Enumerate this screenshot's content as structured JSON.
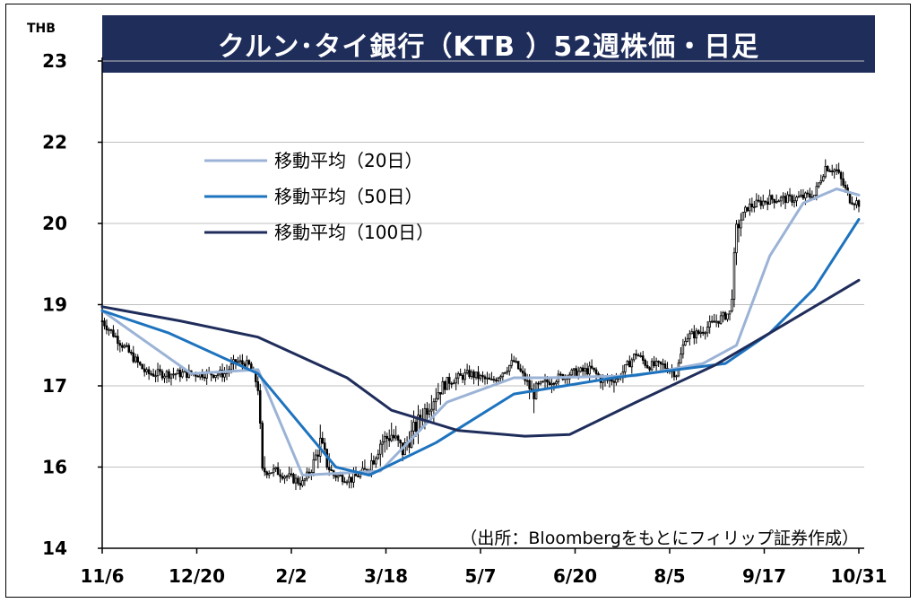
{
  "title": "クルン･タイ銀行（KTB ）52週株価・日足",
  "y_unit": "THB",
  "source": "（出所：Bloombergをもとにフィリップ証券作成）",
  "legend": [
    {
      "label": "移動平均（20日）",
      "color": "#9bb3d6"
    },
    {
      "label": "移動平均（50日）",
      "color": "#1e73be"
    },
    {
      "label": "移動平均（100日）",
      "color": "#1f2d5b"
    }
  ],
  "chart_data": {
    "type": "line",
    "title": "クルン･タイ銀行（KTB ）52週株価・日足",
    "ylabel": "THB",
    "y_ticks": [
      "14",
      "16",
      "17",
      "19",
      "20",
      "22",
      "23"
    ],
    "x_ticks": [
      "11/6",
      "12/20",
      "2/2",
      "3/18",
      "5/7",
      "6/20",
      "8/5",
      "9/17",
      "10/31"
    ],
    "ylim": [
      14,
      23
    ],
    "grid": "horizontal",
    "legend_position": "top-left",
    "candlestick_series": {
      "name": "株価（日足）",
      "color": "#000000",
      "anchors": [
        [
          0,
          18.6
        ],
        [
          20,
          17.3
        ],
        [
          40,
          17.3
        ],
        [
          55,
          17.3
        ],
        [
          60,
          17.6
        ],
        [
          66,
          17.5
        ],
        [
          70,
          17.0
        ],
        [
          72,
          15.9
        ],
        [
          78,
          15.9
        ],
        [
          90,
          15.6
        ],
        [
          98,
          16.3
        ],
        [
          104,
          15.8
        ],
        [
          112,
          15.7
        ],
        [
          118,
          15.9
        ],
        [
          125,
          16.3
        ],
        [
          130,
          16.4
        ],
        [
          135,
          16.2
        ],
        [
          145,
          16.7
        ],
        [
          155,
          17.1
        ],
        [
          165,
          17.3
        ],
        [
          175,
          17.1
        ],
        [
          185,
          17.6
        ],
        [
          193,
          16.9
        ],
        [
          200,
          17.1
        ],
        [
          210,
          17.3
        ],
        [
          220,
          17.4
        ],
        [
          225,
          17.1
        ],
        [
          232,
          17.2
        ],
        [
          240,
          17.8
        ],
        [
          245,
          17.5
        ],
        [
          252,
          17.5
        ],
        [
          258,
          17.3
        ],
        [
          262,
          18.2
        ],
        [
          268,
          18.3
        ],
        [
          276,
          18.6
        ],
        [
          282,
          18.8
        ],
        [
          285,
          19.9
        ],
        [
          290,
          20.4
        ],
        [
          300,
          20.6
        ],
        [
          310,
          20.6
        ],
        [
          320,
          20.7
        ],
        [
          325,
          21.4
        ],
        [
          330,
          21.3
        ],
        [
          336,
          20.6
        ],
        [
          340,
          20.5
        ]
      ],
      "n_days": 341
    },
    "series": [
      {
        "name": "移動平均（20日）",
        "color": "#9bb3d6",
        "points": [
          [
            0,
            18.85
          ],
          [
            40,
            17.3
          ],
          [
            70,
            17.4
          ],
          [
            90,
            15.8
          ],
          [
            125,
            15.9
          ],
          [
            155,
            16.8
          ],
          [
            185,
            17.2
          ],
          [
            200,
            17.2
          ],
          [
            240,
            17.25
          ],
          [
            270,
            17.55
          ],
          [
            285,
            18.0
          ],
          [
            300,
            19.6
          ],
          [
            315,
            20.5
          ],
          [
            330,
            20.85
          ],
          [
            340,
            20.7
          ]
        ]
      },
      {
        "name": "移動平均（50日）",
        "color": "#1e73be",
        "points": [
          [
            0,
            18.85
          ],
          [
            30,
            18.3
          ],
          [
            70,
            17.3
          ],
          [
            105,
            16.0
          ],
          [
            120,
            15.8
          ],
          [
            150,
            16.3
          ],
          [
            185,
            16.9
          ],
          [
            230,
            17.2
          ],
          [
            280,
            17.55
          ],
          [
            300,
            18.3
          ],
          [
            320,
            19.2
          ],
          [
            340,
            20.1
          ]
        ]
      },
      {
        "name": "移動平均（100日）",
        "color": "#1f2d5b",
        "points": [
          [
            0,
            18.95
          ],
          [
            35,
            18.6
          ],
          [
            70,
            18.2
          ],
          [
            110,
            17.2
          ],
          [
            130,
            16.7
          ],
          [
            160,
            16.45
          ],
          [
            190,
            16.38
          ],
          [
            210,
            16.4
          ],
          [
            240,
            16.8
          ],
          [
            275,
            17.5
          ],
          [
            300,
            18.3
          ],
          [
            340,
            19.3
          ]
        ]
      }
    ]
  }
}
